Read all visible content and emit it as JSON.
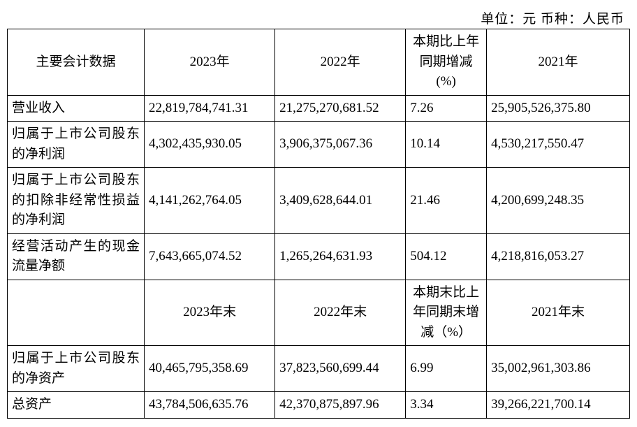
{
  "meta": {
    "unit_line": "单位：元   币种：人民币"
  },
  "headers": {
    "top": {
      "label": "主要会计数据",
      "y2023": "2023年",
      "y2022": "2022年",
      "pct": "本期比上年同期增减(%)",
      "y2021": "2021年"
    },
    "mid": {
      "y2023": "2023年末",
      "y2022": "2022年末",
      "pct": "本期末比上年同期末增减（%）",
      "y2021": "2021年末"
    }
  },
  "rows_top": [
    {
      "label": "营业收入",
      "y2023": "22,819,784,741.31",
      "y2022": "21,275,270,681.52",
      "pct": "7.26",
      "y2021": "25,905,526,375.80"
    },
    {
      "label": "归属于上市公司股东的净利润",
      "y2023": "4,302,435,930.05",
      "y2022": "3,906,375,067.36",
      "pct": "10.14",
      "y2021": "4,530,217,550.47"
    },
    {
      "label": "归属于上市公司股东的扣除非经常性损益的净利润",
      "y2023": "4,141,262,764.05",
      "y2022": "3,409,628,644.01",
      "pct": "21.46",
      "y2021": "4,200,699,248.35"
    },
    {
      "label": "经营活动产生的现金流量净额",
      "y2023": "7,643,665,074.52",
      "y2022": "1,265,264,631.93",
      "pct": "504.12",
      "y2021": "4,218,816,053.27"
    }
  ],
  "rows_bottom": [
    {
      "label": "归属于上市公司股东的净资产",
      "y2023": "40,465,795,358.69",
      "y2022": "37,823,560,699.44",
      "pct": "6.99",
      "y2021": "35,002,961,303.86"
    },
    {
      "label": "总资产",
      "y2023": "43,784,506,635.76",
      "y2022": "42,370,875,897.96",
      "pct": "3.34",
      "y2021": "39,266,221,700.14"
    }
  ],
  "style": {
    "border_color": "#000000",
    "background_color": "#ffffff",
    "text_color": "#000000",
    "font_family": "SimSun",
    "font_size_pt": 14
  }
}
